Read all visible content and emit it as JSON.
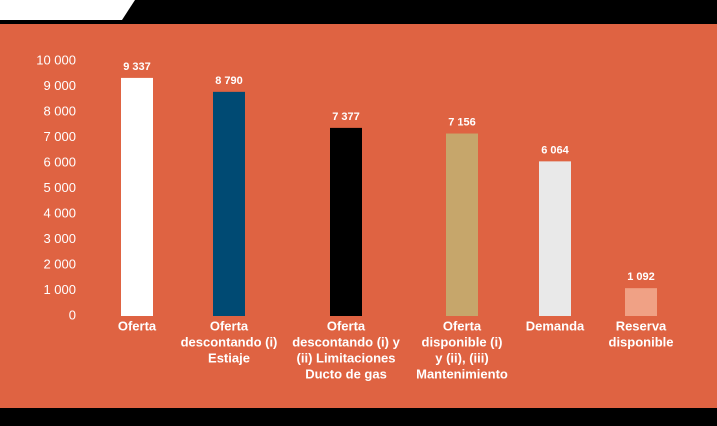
{
  "chart_data": {
    "type": "bar",
    "categories": [
      [
        "Oferta"
      ],
      [
        "Oferta",
        "descontando (i)",
        "Estiaje"
      ],
      [
        "Oferta",
        "descontando (i) y",
        "(ii) Limitaciones",
        "Ducto de gas"
      ],
      [
        "Oferta",
        "disponible (i)",
        "y (ii), (iii)",
        "Mantenimiento"
      ],
      [
        "Demanda"
      ],
      [
        "Reserva",
        "disponible"
      ]
    ],
    "values": [
      9337,
      8790,
      7377,
      7156,
      6064,
      1092
    ],
    "value_labels": [
      "9 337",
      "8 790",
      "7 377",
      "7 156",
      "6 064",
      "1 092"
    ],
    "colors": [
      "#ffffff",
      "#004a73",
      "#000000",
      "#c6a66b",
      "#e9e9e9",
      "#f0a185"
    ],
    "ylim": [
      0,
      10000
    ],
    "yticks": [
      0,
      {
        "value": 1000,
        "label": "1 000"
      },
      {
        "value": 2000,
        "label": "2 000"
      },
      {
        "value": 3000,
        "label": "3 000"
      },
      {
        "value": 4000,
        "label": "4 000"
      },
      {
        "value": 5000,
        "label": "5 000"
      },
      {
        "value": 6000,
        "label": "6 000"
      },
      {
        "value": 7000,
        "label": "7 000"
      },
      {
        "value": 8000,
        "label": "8 000"
      },
      {
        "value": 9000,
        "label": "9 000"
      },
      {
        "value": 10000,
        "label": "10 000"
      }
    ]
  }
}
